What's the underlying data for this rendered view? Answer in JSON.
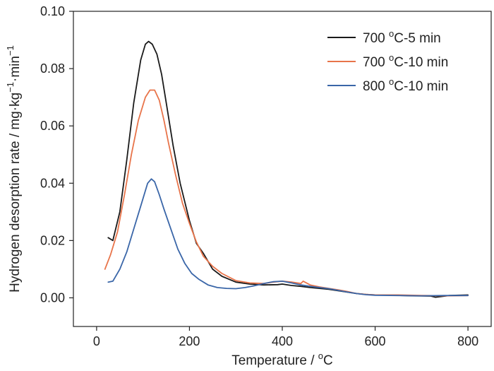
{
  "chart_data": {
    "type": "line",
    "title": "",
    "xlabel": "Temperature / °C",
    "xlabel_parts": {
      "main": "Temperature / ",
      "sup": "o",
      "unit": "C"
    },
    "ylabel": "Hydrogen desorption rate / mg·kg⁻¹·min⁻¹",
    "ylabel_parts": {
      "main": "Hydrogen desorption rate / mg·kg",
      "sup1": "−1",
      "mid": "·min",
      "sup2": "−1"
    },
    "xlim": [
      -50,
      850
    ],
    "ylim": [
      -0.01,
      0.1
    ],
    "x_ticks": [
      0,
      200,
      400,
      600,
      800
    ],
    "x_tick_labels": [
      "0",
      "200",
      "400",
      "600",
      "800"
    ],
    "y_ticks": [
      0.0,
      0.02,
      0.04,
      0.06,
      0.08,
      0.1
    ],
    "y_tick_labels": [
      "0.00",
      "0.02",
      "0.04",
      "0.06",
      "0.08",
      "0.10"
    ],
    "grid": false,
    "legend_position": "top-right",
    "series": [
      {
        "name": "700 °C-5 min",
        "label_parts": {
          "pre": "700 ",
          "sup": "o",
          "post": "C-5 min"
        },
        "color": "#1a1a1a",
        "x": [
          25,
          35,
          50,
          65,
          80,
          95,
          105,
          112,
          120,
          130,
          140,
          150,
          165,
          180,
          200,
          215,
          230,
          250,
          270,
          300,
          330,
          360,
          390,
          400,
          420,
          440,
          460,
          480,
          500,
          520,
          540,
          560,
          580,
          600,
          640,
          680,
          720,
          730,
          760,
          800
        ],
        "y": [
          0.021,
          0.02,
          0.03,
          0.048,
          0.068,
          0.083,
          0.0885,
          0.0895,
          0.0885,
          0.085,
          0.078,
          0.068,
          0.053,
          0.04,
          0.027,
          0.019,
          0.0155,
          0.01,
          0.0075,
          0.0055,
          0.0048,
          0.0045,
          0.0046,
          0.0048,
          0.0043,
          0.004,
          0.0036,
          0.0033,
          0.003,
          0.0025,
          0.002,
          0.0015,
          0.0012,
          0.001,
          0.0009,
          0.0007,
          0.0006,
          0.0002,
          0.0008,
          0.001
        ]
      },
      {
        "name": "700 °C-10 min",
        "label_parts": {
          "pre": "700 ",
          "sup": "o",
          "post": "C-10 min"
        },
        "color": "#e8744a",
        "x": [
          18,
          30,
          45,
          60,
          75,
          90,
          105,
          115,
          125,
          135,
          145,
          155,
          170,
          185,
          200,
          215,
          230,
          250,
          270,
          300,
          330,
          360,
          380,
          400,
          420,
          440,
          445,
          460,
          480,
          500,
          520,
          540,
          560,
          580,
          600,
          650,
          700,
          750,
          800
        ],
        "y": [
          0.01,
          0.015,
          0.023,
          0.036,
          0.05,
          0.062,
          0.07,
          0.0725,
          0.0725,
          0.069,
          0.062,
          0.054,
          0.043,
          0.033,
          0.026,
          0.0195,
          0.0145,
          0.011,
          0.0085,
          0.006,
          0.0052,
          0.005,
          0.0055,
          0.0058,
          0.0055,
          0.005,
          0.0058,
          0.0045,
          0.0038,
          0.0033,
          0.0028,
          0.0022,
          0.0015,
          0.0012,
          0.001,
          0.001,
          0.0008,
          0.0007,
          0.0008
        ]
      },
      {
        "name": "800 °C-10 min",
        "label_parts": {
          "pre": "800 ",
          "sup": "o",
          "post": "C-10 min"
        },
        "color": "#3a66a8",
        "x": [
          25,
          35,
          50,
          65,
          80,
          95,
          110,
          118,
          125,
          135,
          145,
          160,
          175,
          190,
          205,
          220,
          240,
          260,
          280,
          300,
          320,
          340,
          360,
          380,
          400,
          420,
          440,
          460,
          480,
          500,
          520,
          540,
          560,
          580,
          600,
          650,
          700,
          750,
          800
        ],
        "y": [
          0.0055,
          0.0058,
          0.01,
          0.016,
          0.024,
          0.032,
          0.04,
          0.0415,
          0.0405,
          0.036,
          0.031,
          0.024,
          0.017,
          0.012,
          0.0085,
          0.0065,
          0.0045,
          0.0036,
          0.0033,
          0.0032,
          0.0036,
          0.0042,
          0.005,
          0.0056,
          0.0058,
          0.0052,
          0.0045,
          0.004,
          0.0036,
          0.0032,
          0.0026,
          0.002,
          0.0015,
          0.0011,
          0.0009,
          0.0008,
          0.0007,
          0.0008,
          0.0008
        ]
      }
    ]
  }
}
